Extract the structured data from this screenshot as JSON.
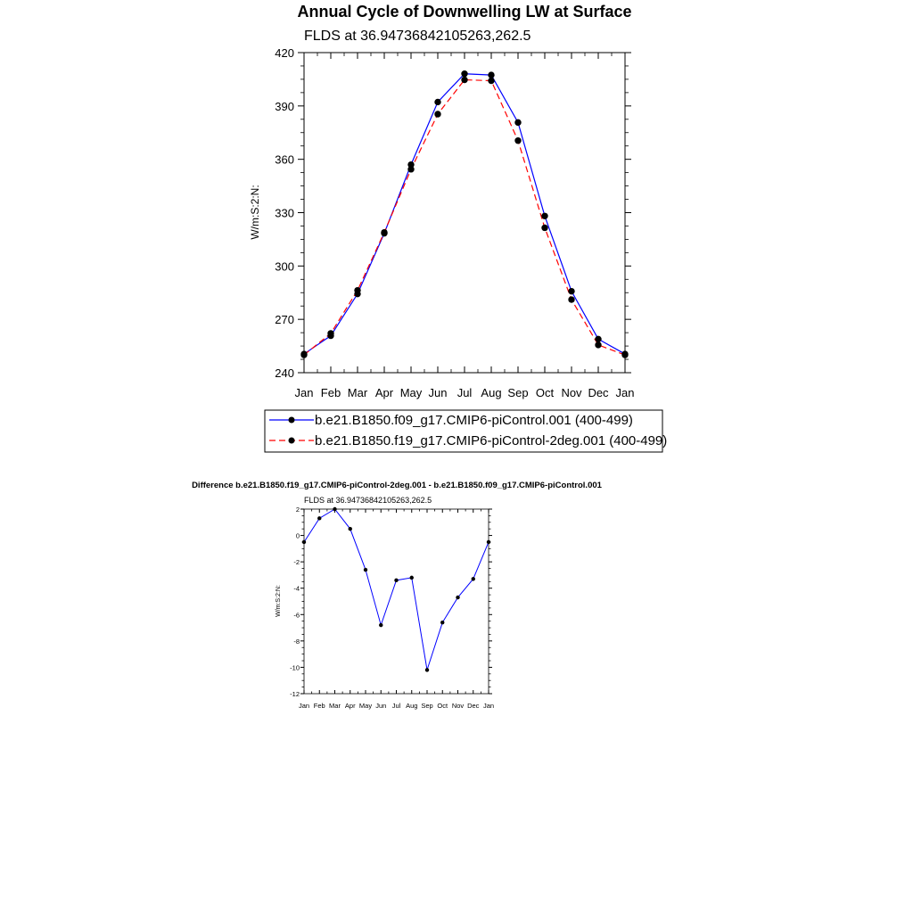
{
  "chart_data": [
    {
      "type": "line",
      "title": "Annual Cycle of Downwelling LW at Surface",
      "subtitle": "FLDS at 36.94736842105263,262.5",
      "xlabel": "",
      "ylabel": "W/m:S:2:N:",
      "categories": [
        "Jan",
        "Feb",
        "Mar",
        "Apr",
        "May",
        "Jun",
        "Jul",
        "Aug",
        "Sep",
        "Oct",
        "Nov",
        "Dec",
        "Jan"
      ],
      "ylim": [
        240,
        420
      ],
      "yticks": [
        240,
        270,
        300,
        330,
        360,
        390,
        420
      ],
      "grid": false,
      "legend_position": "bottom",
      "series": [
        {
          "name": "b.e21.B1850.f09_g17.CMIP6-piControl.001 (400-499)",
          "color": "#0000ff",
          "style": "solid",
          "values": [
            250.5,
            260.8,
            284.3,
            318.4,
            357.0,
            392.2,
            408.1,
            407.4,
            380.7,
            328.1,
            285.8,
            258.9,
            250.5
          ]
        },
        {
          "name": "b.e21.B1850.f19_g17.CMIP6-piControl-2deg.001 (400-499)",
          "color": "#ff0000",
          "style": "dashed",
          "values": [
            250.0,
            262.1,
            286.3,
            318.9,
            354.4,
            385.4,
            404.7,
            404.2,
            370.5,
            321.5,
            281.1,
            255.6,
            250.0
          ]
        }
      ]
    },
    {
      "type": "line",
      "title": "Difference b.e21.B1850.f19_g17.CMIP6-piControl-2deg.001 - b.e21.B1850.f09_g17.CMIP6-piControl.001",
      "subtitle": "FLDS at 36.94736842105263,262.5",
      "xlabel": "",
      "ylabel": "W/m:S:2:N:",
      "categories": [
        "Jan",
        "Feb",
        "Mar",
        "Apr",
        "May",
        "Jun",
        "Jul",
        "Aug",
        "Sep",
        "Oct",
        "Nov",
        "Dec",
        "Jan"
      ],
      "ylim": [
        -12,
        2
      ],
      "yticks": [
        -12,
        -10,
        -8,
        -6,
        -4,
        -2,
        0,
        2
      ],
      "grid": false,
      "series": [
        {
          "color": "#0000ff",
          "style": "solid",
          "values": [
            -0.5,
            1.3,
            2.0,
            0.5,
            -2.6,
            -6.8,
            -3.4,
            -3.2,
            -10.2,
            -6.6,
            -4.7,
            -3.3,
            -0.5
          ]
        }
      ]
    }
  ]
}
